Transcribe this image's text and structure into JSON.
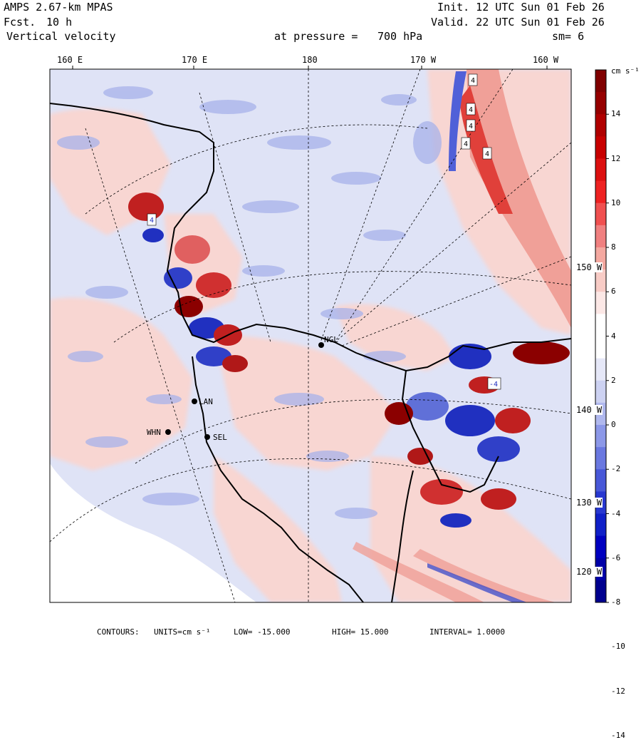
{
  "header": {
    "model": "AMPS 2.67-km MPAS",
    "forecast_label": "Fcst.",
    "forecast_value": "10 h",
    "field": "Vertical velocity",
    "init": "Init. 12 UTC Sun 01 Feb 26",
    "valid": "Valid. 22 UTC Sun 01 Feb 26",
    "level_label": "at pressure =",
    "level_value": "700 hPa",
    "smoothing": "sm= 6"
  },
  "map": {
    "longitude_labels": [
      "160 E",
      "170 E",
      "180",
      "170 W",
      "160 W"
    ],
    "latitude_labels": [
      "150 W",
      "140 W",
      "130 W",
      "120 W"
    ],
    "stations": [
      {
        "id": "WHN",
        "label": "WHN"
      },
      {
        "id": "SEL",
        "label": "SEL"
      },
      {
        "id": "LAN",
        "label": "LAN"
      },
      {
        "id": "NGL",
        "label": "NGL"
      }
    ],
    "contour_labels": [
      "4",
      "4",
      "4",
      "4",
      "4",
      "4",
      "-4"
    ],
    "colors": {
      "strong_positive": "#8b0000",
      "positive": "#e8202a",
      "weak_positive": "#f8d8d4",
      "weak_negative": "#dde2f6",
      "negative": "#3344dd",
      "strong_negative": "#000088",
      "coast": "#000000"
    }
  },
  "colorbar": {
    "units": "cm s⁻¹",
    "ticks": [
      "14",
      "12",
      "10",
      "8",
      "6",
      "4",
      "2",
      "0",
      "-2",
      "-4",
      "-6",
      "-8",
      "-10",
      "-12",
      "-14"
    ],
    "colors": [
      "#800000",
      "#960000",
      "#b00000",
      "#c80000",
      "#dc1010",
      "#ee2222",
      "#f05050",
      "#f08080",
      "#f4a8a0",
      "#f8ccc6",
      "#fce8e6",
      "#ffffff",
      "#ffffff",
      "#e6e8f8",
      "#cdd2f2",
      "#b0b8ee",
      "#8c98e8",
      "#6a78e0",
      "#4858d8",
      "#2838d0",
      "#1020c8",
      "#0000c0",
      "#0000a8",
      "#00008e"
    ]
  },
  "footer": {
    "contours": "CONTOURS:",
    "units": "UNITS=cm s⁻¹",
    "low": "LOW= -15.000",
    "high": "HIGH= 15.000",
    "interval": "INTERVAL= 1.0000"
  }
}
